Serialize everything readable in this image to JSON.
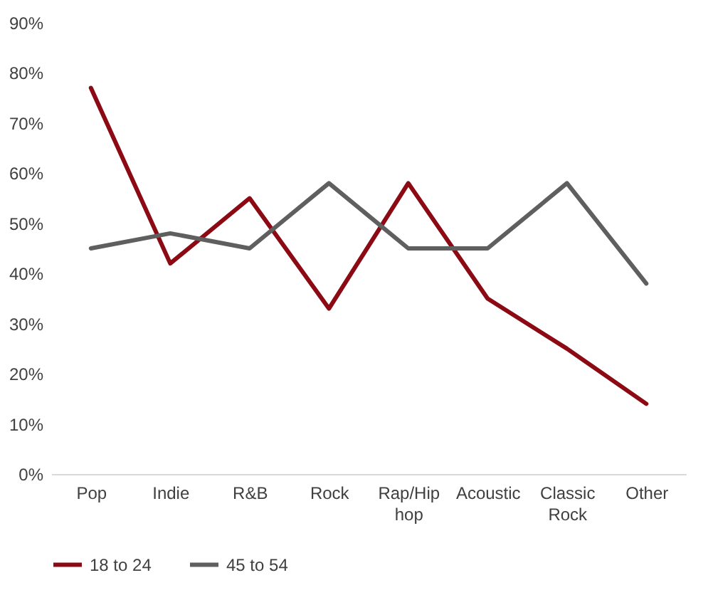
{
  "chart_data": {
    "type": "line",
    "categories": [
      "Pop",
      "Indie",
      "R&B",
      "Rock",
      "Rap/Hip hop",
      "Acoustic",
      "Classic Rock",
      "Other"
    ],
    "series": [
      {
        "name": "18 to 24",
        "color": "#8b0a14",
        "values": [
          77,
          42,
          55,
          33,
          58,
          35,
          25,
          14
        ]
      },
      {
        "name": "45 to 54",
        "color": "#5f5f5f",
        "values": [
          45,
          48,
          45,
          58,
          45,
          45,
          58,
          38
        ]
      }
    ],
    "ylim": [
      0,
      90
    ],
    "yticks": [
      {
        "value": 0,
        "label": "0%"
      },
      {
        "value": 10,
        "label": "10%"
      },
      {
        "value": 20,
        "label": "20%"
      },
      {
        "value": 30,
        "label": "30%"
      },
      {
        "value": 40,
        "label": "40%"
      },
      {
        "value": 50,
        "label": "50%"
      },
      {
        "value": 60,
        "label": "60%"
      },
      {
        "value": 70,
        "label": "70%"
      },
      {
        "value": 80,
        "label": "80%"
      },
      {
        "value": 90,
        "label": "90%"
      }
    ],
    "grid": false,
    "legend": "bottom",
    "marker": "none",
    "line_style": "solid"
  }
}
